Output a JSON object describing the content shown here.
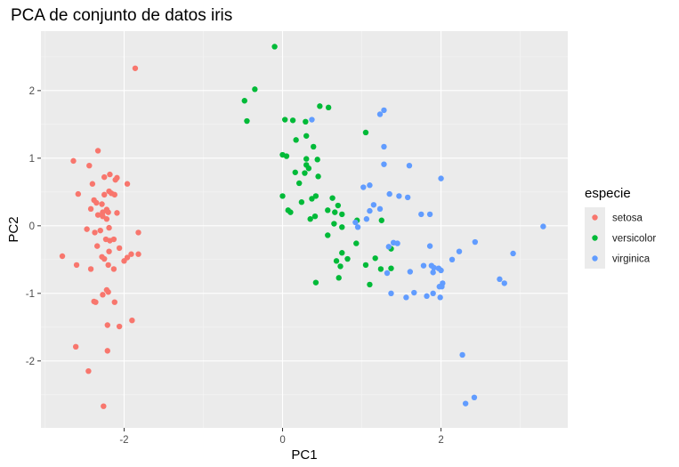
{
  "chart_data": {
    "type": "scatter",
    "title": "PCA de conjunto de datos iris",
    "xlabel": "PC1",
    "ylabel": "PC2",
    "xlim": [
      -3.05,
      3.6
    ],
    "ylim": [
      -2.99,
      2.88
    ],
    "x_ticks": [
      -2,
      0,
      2
    ],
    "y_ticks": [
      -2,
      -1,
      0,
      1,
      2
    ],
    "x_tick_labels": [
      "-2",
      "0",
      "2"
    ],
    "y_tick_labels": [
      "-2",
      "-1",
      "0",
      "1",
      "2"
    ],
    "grid": true,
    "legend_placement": "right",
    "legend_title": "especie",
    "series": [
      {
        "name": "setosa",
        "color": "#F8766D",
        "points": [
          [
            -1.86,
            2.33
          ],
          [
            -2.33,
            1.11
          ],
          [
            -2.64,
            0.96
          ],
          [
            -2.44,
            0.89
          ],
          [
            -2.18,
            0.76
          ],
          [
            -2.09,
            0.71
          ],
          [
            -2.25,
            0.72
          ],
          [
            -2.11,
            0.68
          ],
          [
            -1.96,
            0.62
          ],
          [
            -2.4,
            0.62
          ],
          [
            -2.19,
            0.51
          ],
          [
            -2.16,
            0.48
          ],
          [
            -2.25,
            0.46
          ],
          [
            -2.12,
            0.46
          ],
          [
            -2.58,
            0.47
          ],
          [
            -2.38,
            0.38
          ],
          [
            -2.35,
            0.34
          ],
          [
            -2.28,
            0.32
          ],
          [
            -2.42,
            0.25
          ],
          [
            -2.22,
            0.24
          ],
          [
            -2.27,
            0.2
          ],
          [
            -2.2,
            0.2
          ],
          [
            -2.09,
            0.19
          ],
          [
            -2.33,
            0.16
          ],
          [
            -2.27,
            0.14
          ],
          [
            -2.22,
            0.1
          ],
          [
            -2.19,
            -0.03
          ],
          [
            -2.47,
            -0.05
          ],
          [
            -2.3,
            -0.07
          ],
          [
            -1.82,
            -0.1
          ],
          [
            -2.37,
            -0.1
          ],
          [
            -2.23,
            -0.2
          ],
          [
            -2.13,
            -0.2
          ],
          [
            -2.18,
            -0.22
          ],
          [
            -2.34,
            -0.3
          ],
          [
            -2.06,
            -0.33
          ],
          [
            -2.19,
            -0.38
          ],
          [
            -1.91,
            -0.42
          ],
          [
            -1.82,
            -0.42
          ],
          [
            -2.78,
            -0.45
          ],
          [
            -2.28,
            -0.46
          ],
          [
            -2.25,
            -0.49
          ],
          [
            -1.96,
            -0.47
          ],
          [
            -2.0,
            -0.52
          ],
          [
            -2.6,
            -0.58
          ],
          [
            -2.2,
            -0.58
          ],
          [
            -2.42,
            -0.64
          ],
          [
            -2.13,
            -0.64
          ],
          [
            -2.22,
            -0.95
          ],
          [
            -2.2,
            -0.98
          ],
          [
            -2.27,
            -1.02
          ],
          [
            -2.38,
            -1.12
          ],
          [
            -2.36,
            -1.13
          ],
          [
            -2.12,
            -1.13
          ],
          [
            -1.9,
            -1.4
          ],
          [
            -2.06,
            -1.49
          ],
          [
            -2.21,
            -1.47
          ],
          [
            -2.61,
            -1.79
          ],
          [
            -2.21,
            -1.85
          ],
          [
            -2.45,
            -2.15
          ],
          [
            -2.26,
            -2.67
          ]
        ]
      },
      {
        "name": "versicolor",
        "color": "#00BA38",
        "points": [
          [
            -0.1,
            2.65
          ],
          [
            -0.35,
            2.02
          ],
          [
            -0.48,
            1.85
          ],
          [
            0.47,
            1.77
          ],
          [
            0.58,
            1.75
          ],
          [
            -0.45,
            1.55
          ],
          [
            0.03,
            1.57
          ],
          [
            0.13,
            1.56
          ],
          [
            0.29,
            1.54
          ],
          [
            1.05,
            1.38
          ],
          [
            0.3,
            1.33
          ],
          [
            0.17,
            1.27
          ],
          [
            0.39,
            1.17
          ],
          [
            0.0,
            1.05
          ],
          [
            0.05,
            1.03
          ],
          [
            0.3,
            0.99
          ],
          [
            0.44,
            0.98
          ],
          [
            0.3,
            0.9
          ],
          [
            0.33,
            0.85
          ],
          [
            0.16,
            0.79
          ],
          [
            0.28,
            0.78
          ],
          [
            0.45,
            0.73
          ],
          [
            0.21,
            0.63
          ],
          [
            0.0,
            0.44
          ],
          [
            0.42,
            0.44
          ],
          [
            0.37,
            0.4
          ],
          [
            0.63,
            0.41
          ],
          [
            0.24,
            0.35
          ],
          [
            0.7,
            0.3
          ],
          [
            0.07,
            0.23
          ],
          [
            0.1,
            0.2
          ],
          [
            0.57,
            0.23
          ],
          [
            0.66,
            0.2
          ],
          [
            0.75,
            0.17
          ],
          [
            0.41,
            0.14
          ],
          [
            0.35,
            0.1
          ],
          [
            0.65,
            0.03
          ],
          [
            0.75,
            -0.02
          ],
          [
            0.94,
            0.08
          ],
          [
            1.25,
            0.08
          ],
          [
            0.57,
            -0.14
          ],
          [
            0.93,
            -0.26
          ],
          [
            1.37,
            -0.34
          ],
          [
            0.75,
            -0.4
          ],
          [
            0.82,
            -0.49
          ],
          [
            1.17,
            -0.48
          ],
          [
            0.68,
            -0.52
          ],
          [
            0.73,
            -0.6
          ],
          [
            1.05,
            -0.58
          ],
          [
            1.37,
            -0.63
          ],
          [
            1.24,
            -0.64
          ],
          [
            0.71,
            -0.77
          ],
          [
            0.42,
            -0.84
          ],
          [
            1.1,
            -0.87
          ]
        ]
      },
      {
        "name": "virginica",
        "color": "#619CFF",
        "points": [
          [
            0.37,
            1.57
          ],
          [
            1.28,
            1.71
          ],
          [
            1.23,
            1.65
          ],
          [
            1.28,
            1.17
          ],
          [
            1.28,
            0.91
          ],
          [
            1.6,
            0.89
          ],
          [
            2.0,
            0.7
          ],
          [
            1.02,
            0.57
          ],
          [
            1.1,
            0.6
          ],
          [
            1.35,
            0.47
          ],
          [
            1.47,
            0.44
          ],
          [
            1.58,
            0.42
          ],
          [
            1.15,
            0.31
          ],
          [
            1.23,
            0.25
          ],
          [
            1.1,
            0.22
          ],
          [
            1.75,
            0.17
          ],
          [
            1.86,
            0.17
          ],
          [
            1.06,
            0.1
          ],
          [
            0.95,
            -0.02
          ],
          [
            0.92,
            0.05
          ],
          [
            3.29,
            -0.01
          ],
          [
            1.4,
            -0.25
          ],
          [
            1.45,
            -0.26
          ],
          [
            1.34,
            -0.31
          ],
          [
            2.43,
            -0.24
          ],
          [
            1.86,
            -0.3
          ],
          [
            2.23,
            -0.38
          ],
          [
            2.91,
            -0.41
          ],
          [
            2.14,
            -0.5
          ],
          [
            1.78,
            -0.59
          ],
          [
            1.88,
            -0.59
          ],
          [
            1.91,
            -0.62
          ],
          [
            1.97,
            -0.63
          ],
          [
            1.32,
            -0.7
          ],
          [
            1.61,
            -0.68
          ],
          [
            2.0,
            -0.66
          ],
          [
            1.9,
            -0.69
          ],
          [
            2.74,
            -0.79
          ],
          [
            2.8,
            -0.85
          ],
          [
            2.02,
            -0.85
          ],
          [
            2.01,
            -0.9
          ],
          [
            1.98,
            -0.9
          ],
          [
            1.37,
            -1.0
          ],
          [
            1.66,
            -0.99
          ],
          [
            1.9,
            -1.0
          ],
          [
            1.82,
            -1.04
          ],
          [
            1.56,
            -1.06
          ],
          [
            1.99,
            -1.06
          ],
          [
            2.27,
            -1.91
          ],
          [
            2.42,
            -2.54
          ],
          [
            2.31,
            -2.63
          ]
        ]
      }
    ]
  }
}
